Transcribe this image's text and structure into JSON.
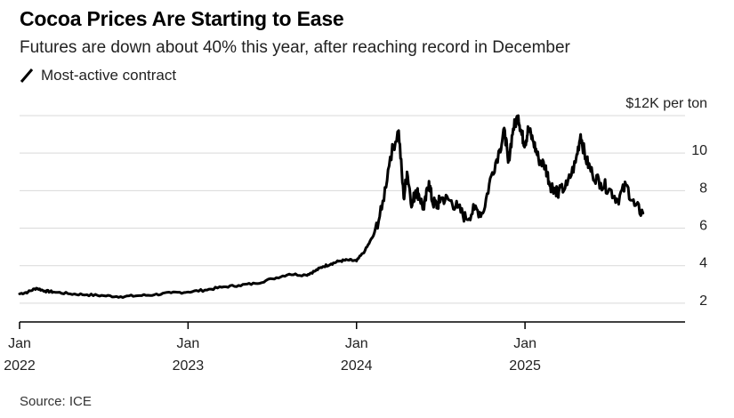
{
  "header": {
    "title": "Cocoa Prices Are Starting to Ease",
    "subtitle": "Futures are down about 40% this year, after reaching record in December",
    "legend_label": "Most-active contract"
  },
  "footer": {
    "source": "Source: ICE"
  },
  "colors": {
    "line": "#000000",
    "grid": "#d9d9d9",
    "axis": "#000000"
  },
  "chart_data": {
    "type": "line",
    "title": "Cocoa Prices Are Starting to Ease",
    "subtitle": "Futures are down about 40% this year, after reaching record in December",
    "xlabel": "",
    "ylabel": "$ per ton",
    "unit_label": "$12K per ton",
    "ylim": [
      1000,
      12000
    ],
    "xlim": [
      2022.0,
      2025.95
    ],
    "y_ticks": [
      {
        "value": 2000,
        "label": "2"
      },
      {
        "value": 4000,
        "label": "4"
      },
      {
        "value": 6000,
        "label": "6"
      },
      {
        "value": 8000,
        "label": "8"
      },
      {
        "value": 10000,
        "label": "10"
      }
    ],
    "x_ticks": [
      {
        "value": 2022.0,
        "month": "Jan",
        "year": "2022"
      },
      {
        "value": 2023.0,
        "month": "Jan",
        "year": "2023"
      },
      {
        "value": 2024.0,
        "month": "Jan",
        "year": "2024"
      },
      {
        "value": 2025.0,
        "month": "Jan",
        "year": "2025"
      }
    ],
    "grid": true,
    "legend": "top-left",
    "series": [
      {
        "name": "Most-active contract",
        "x": [
          2022.0,
          2022.05,
          2022.1,
          2022.15,
          2022.2,
          2022.3,
          2022.4,
          2022.5,
          2022.6,
          2022.7,
          2022.8,
          2022.9,
          2023.0,
          2023.1,
          2023.2,
          2023.3,
          2023.4,
          2023.5,
          2023.6,
          2023.7,
          2023.75,
          2023.8,
          2023.85,
          2023.9,
          2023.95,
          2024.0,
          2024.05,
          2024.1,
          2024.15,
          2024.2,
          2024.25,
          2024.28,
          2024.3,
          2024.33,
          2024.35,
          2024.37,
          2024.4,
          2024.43,
          2024.45,
          2024.48,
          2024.5,
          2024.55,
          2024.6,
          2024.65,
          2024.7,
          2024.75,
          2024.8,
          2024.85,
          2024.88,
          2024.9,
          2024.93,
          2024.96,
          2024.98,
          2025.0,
          2025.02,
          2025.05,
          2025.08,
          2025.12,
          2025.15,
          2025.18,
          2025.2,
          2025.25,
          2025.3,
          2025.33,
          2025.36,
          2025.4,
          2025.45,
          2025.5,
          2025.55,
          2025.6,
          2025.65,
          2025.7
        ],
        "values": [
          2500,
          2600,
          2800,
          2650,
          2600,
          2500,
          2450,
          2400,
          2350,
          2400,
          2450,
          2550,
          2600,
          2700,
          2850,
          2950,
          3050,
          3300,
          3550,
          3500,
          3700,
          3950,
          4100,
          4250,
          4300,
          4250,
          4800,
          5600,
          7000,
          9800,
          11200,
          7600,
          9000,
          7200,
          8000,
          7800,
          7000,
          8500,
          7400,
          7200,
          7600,
          7500,
          7100,
          6500,
          7000,
          6800,
          8800,
          10200,
          11200,
          9500,
          11300,
          12000,
          11000,
          10500,
          11300,
          10600,
          9700,
          9300,
          8300,
          8100,
          7900,
          8300,
          9500,
          11000,
          9700,
          8900,
          8400,
          8100,
          7500,
          8300,
          7200,
          6800
        ]
      }
    ]
  }
}
